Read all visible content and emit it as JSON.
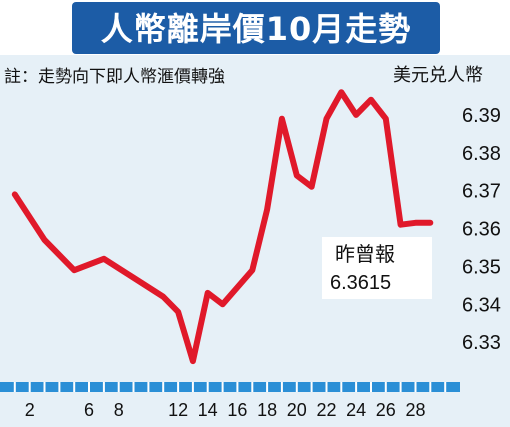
{
  "title": "人幣離岸價10月走勢",
  "note": "註：走勢向下即人幣滙價轉強",
  "unit": "美元兑人幣",
  "callout": {
    "label": "昨曾報",
    "value": "6.3615"
  },
  "colors": {
    "line": "#e0192a",
    "title_bg": "#1c5ca6",
    "panel_bg": "#e6f0f7",
    "axis_bar": "#2b8fd6"
  },
  "chart_data": {
    "type": "line",
    "title": "人幣離岸價10月走勢",
    "ylabel": "美元兑人幣",
    "ylim": [
      6.32,
      6.4
    ],
    "yticks": [
      "6.33",
      "6.34",
      "6.35",
      "6.36",
      "6.37",
      "6.38",
      "6.39"
    ],
    "xticks": [
      "2",
      "6",
      "8",
      "12",
      "14",
      "16",
      "18",
      "20",
      "22",
      "24",
      "26",
      "28"
    ],
    "xlim": [
      0,
      31
    ],
    "series": [
      {
        "x": [
          1,
          3,
          5,
          7,
          9,
          11,
          12,
          13,
          14,
          15,
          17,
          18,
          19,
          20,
          21,
          22,
          23,
          24,
          25,
          26,
          27,
          28,
          29
        ],
        "y": [
          6.369,
          6.357,
          6.349,
          6.352,
          6.347,
          6.342,
          6.338,
          6.325,
          6.343,
          6.34,
          6.349,
          6.365,
          6.389,
          6.374,
          6.371,
          6.389,
          6.396,
          6.39,
          6.394,
          6.389,
          6.361,
          6.3615,
          6.3615
        ]
      }
    ]
  }
}
